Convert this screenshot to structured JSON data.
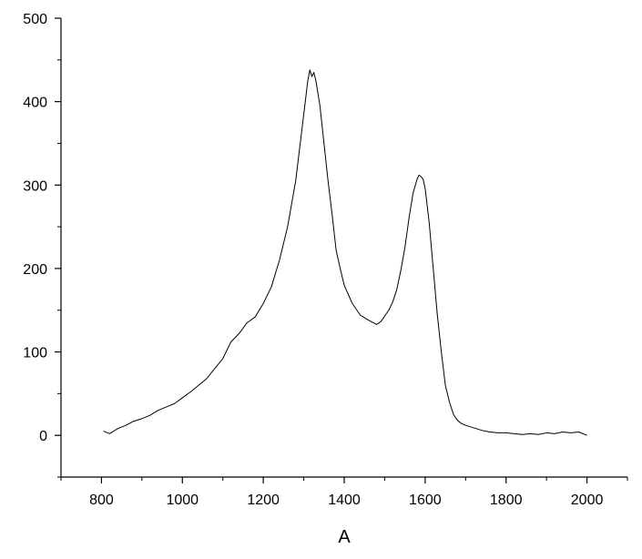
{
  "chart_data": {
    "type": "line",
    "title": "",
    "xlabel": "A",
    "ylabel": "",
    "xlim": [
      700,
      2100
    ],
    "ylim": [
      -50,
      500
    ],
    "x_ticks": [
      800,
      1000,
      1200,
      1400,
      1600,
      1800,
      2000
    ],
    "x_tick_labels": [
      "800",
      "1000",
      "1200",
      "1400",
      "1600",
      "1800",
      "2000"
    ],
    "y_ticks": [
      0,
      100,
      200,
      300,
      400,
      500
    ],
    "y_tick_labels": [
      "0",
      "100",
      "200",
      "300",
      "400",
      "500"
    ],
    "grid": false,
    "legend": "none",
    "line_color": "#000000",
    "series": [
      {
        "x": [
          805,
          820,
          840,
          860,
          880,
          900,
          920,
          940,
          960,
          980,
          1000,
          1020,
          1040,
          1060,
          1080,
          1100,
          1120,
          1140,
          1160,
          1180,
          1200,
          1220,
          1240,
          1260,
          1280,
          1300,
          1310,
          1315,
          1320,
          1325,
          1330,
          1340,
          1350,
          1360,
          1370,
          1380,
          1390,
          1400,
          1420,
          1440,
          1460,
          1480,
          1490,
          1500,
          1510,
          1520,
          1530,
          1540,
          1550,
          1560,
          1570,
          1580,
          1585,
          1590,
          1595,
          1600,
          1610,
          1620,
          1630,
          1640,
          1650,
          1660,
          1670,
          1680,
          1690,
          1700,
          1720,
          1740,
          1760,
          1780,
          1800,
          1820,
          1840,
          1860,
          1880,
          1900,
          1920,
          1940,
          1960,
          1980,
          2000
        ],
        "y": [
          5,
          2,
          8,
          12,
          17,
          20,
          24,
          30,
          34,
          38,
          45,
          52,
          60,
          68,
          80,
          92,
          112,
          122,
          135,
          142,
          158,
          178,
          210,
          250,
          305,
          385,
          425,
          438,
          430,
          435,
          425,
          395,
          350,
          305,
          265,
          222,
          200,
          180,
          158,
          144,
          138,
          133,
          136,
          143,
          150,
          160,
          175,
          198,
          225,
          260,
          290,
          307,
          312,
          310,
          307,
          296,
          255,
          200,
          145,
          100,
          60,
          40,
          25,
          18,
          14,
          12,
          9,
          6,
          4,
          3,
          3,
          2,
          1,
          2,
          1,
          3,
          2,
          4,
          3,
          4,
          0
        ]
      }
    ]
  }
}
